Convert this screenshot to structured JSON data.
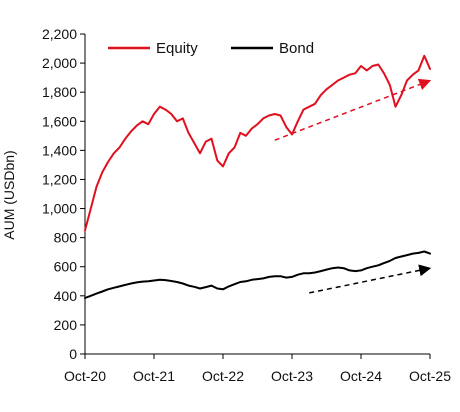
{
  "chart_data": {
    "type": "line",
    "title": "",
    "xlabel": "",
    "ylabel": "AUM (USDbn)",
    "ylim": [
      0,
      2200
    ],
    "yticks": [
      0,
      200,
      400,
      600,
      800,
      1000,
      1200,
      1400,
      1600,
      1800,
      2000,
      2200
    ],
    "ytick_labels": [
      "0",
      "200",
      "400",
      "600",
      "800",
      "1,000",
      "1,200",
      "1,400",
      "1,600",
      "1,800",
      "2,000",
      "2,200"
    ],
    "xlim": [
      "2020-10",
      "2025-10"
    ],
    "xtick_labels": [
      "Oct-20",
      "Oct-21",
      "Oct-22",
      "Oct-23",
      "Oct-24",
      "Oct-25"
    ],
    "grid": false,
    "legend_position": "top",
    "series": [
      {
        "name": "Equity",
        "color": "#e0101e",
        "x": [
          "2020-10",
          "2020-11",
          "2020-12",
          "2021-01",
          "2021-02",
          "2021-03",
          "2021-04",
          "2021-05",
          "2021-06",
          "2021-07",
          "2021-08",
          "2021-09",
          "2021-10",
          "2021-11",
          "2021-12",
          "2022-01",
          "2022-02",
          "2022-03",
          "2022-04",
          "2022-05",
          "2022-06",
          "2022-07",
          "2022-08",
          "2022-09",
          "2022-10",
          "2022-11",
          "2022-12",
          "2023-01",
          "2023-02",
          "2023-03",
          "2023-04",
          "2023-05",
          "2023-06",
          "2023-07",
          "2023-08",
          "2023-09",
          "2023-10",
          "2023-11",
          "2023-12",
          "2024-01",
          "2024-02",
          "2024-03",
          "2024-04",
          "2024-05",
          "2024-06",
          "2024-07",
          "2024-08",
          "2024-09",
          "2024-10",
          "2024-11",
          "2024-12",
          "2025-01",
          "2025-02",
          "2025-03",
          "2025-04",
          "2025-05",
          "2025-06",
          "2025-07",
          "2025-08",
          "2025-09",
          "2025-10"
        ],
        "values": [
          850,
          1000,
          1150,
          1250,
          1320,
          1380,
          1420,
          1480,
          1530,
          1570,
          1600,
          1580,
          1650,
          1700,
          1680,
          1650,
          1600,
          1620,
          1520,
          1450,
          1380,
          1460,
          1480,
          1330,
          1290,
          1380,
          1420,
          1520,
          1500,
          1550,
          1580,
          1620,
          1640,
          1650,
          1640,
          1560,
          1510,
          1600,
          1680,
          1700,
          1720,
          1780,
          1820,
          1850,
          1880,
          1900,
          1920,
          1930,
          1980,
          1950,
          1980,
          1990,
          1930,
          1850,
          1700,
          1780,
          1880,
          1920,
          1950,
          2050,
          1960
        ]
      },
      {
        "name": "Bond",
        "color": "#000000",
        "x": [
          "2020-10",
          "2020-11",
          "2020-12",
          "2021-01",
          "2021-02",
          "2021-03",
          "2021-04",
          "2021-05",
          "2021-06",
          "2021-07",
          "2021-08",
          "2021-09",
          "2021-10",
          "2021-11",
          "2021-12",
          "2022-01",
          "2022-02",
          "2022-03",
          "2022-04",
          "2022-05",
          "2022-06",
          "2022-07",
          "2022-08",
          "2022-09",
          "2022-10",
          "2022-11",
          "2022-12",
          "2023-01",
          "2023-02",
          "2023-03",
          "2023-04",
          "2023-05",
          "2023-06",
          "2023-07",
          "2023-08",
          "2023-09",
          "2023-10",
          "2023-11",
          "2023-12",
          "2024-01",
          "2024-02",
          "2024-03",
          "2024-04",
          "2024-05",
          "2024-06",
          "2024-07",
          "2024-08",
          "2024-09",
          "2024-10",
          "2024-11",
          "2024-12",
          "2025-01",
          "2025-02",
          "2025-03",
          "2025-04",
          "2025-05",
          "2025-06",
          "2025-07",
          "2025-08",
          "2025-09",
          "2025-10"
        ],
        "values": [
          385,
          400,
          415,
          430,
          445,
          455,
          465,
          475,
          485,
          492,
          498,
          500,
          505,
          510,
          508,
          502,
          495,
          485,
          470,
          462,
          450,
          460,
          470,
          450,
          445,
          465,
          480,
          495,
          500,
          510,
          515,
          520,
          530,
          535,
          535,
          525,
          530,
          545,
          555,
          555,
          560,
          570,
          580,
          590,
          595,
          590,
          575,
          570,
          575,
          590,
          600,
          610,
          625,
          640,
          660,
          670,
          680,
          690,
          695,
          705,
          690
        ]
      }
    ],
    "annotations": [
      {
        "type": "dashed-arrow",
        "color": "#e0101e",
        "from": [
          "2023-07",
          1470
        ],
        "to": [
          "2025-10",
          1880
        ]
      },
      {
        "type": "dashed-arrow",
        "color": "#000000",
        "from": [
          "2024-01",
          420
        ],
        "to": [
          "2025-10",
          590
        ]
      }
    ]
  }
}
